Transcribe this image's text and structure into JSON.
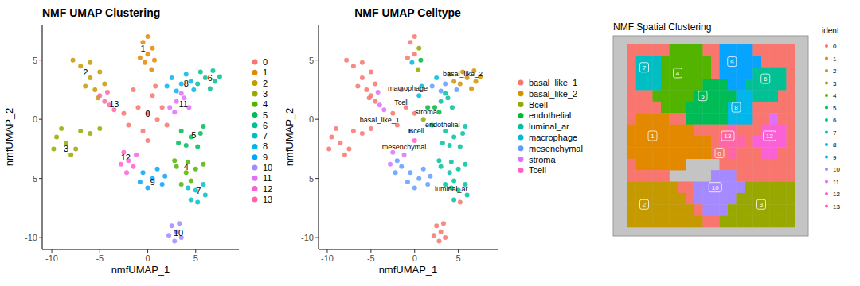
{
  "chart_data": [
    {
      "type": "scatter",
      "title": "NMF UMAP Clustering",
      "x_label": "nmfUMAP_1",
      "y_label": "nmfUMAP_2",
      "xlim": [
        -11,
        9.5
      ],
      "ylim": [
        -11,
        8
      ],
      "xticks": [
        -10,
        -5,
        0,
        5
      ],
      "yticks": [
        -10,
        -5,
        0,
        5
      ],
      "legend": "right",
      "series": [
        {
          "name": "0",
          "color": "#F8766D",
          "x": [
            0,
            -1,
            1,
            -2,
            0.5,
            -0.5,
            1.5,
            -1.5,
            2,
            0,
            -2.5,
            0.8
          ],
          "values": [
            0.5,
            1,
            0,
            -0.5,
            2,
            -1,
            1,
            2.5,
            -0.5,
            -1.8,
            0.5,
            2.8
          ]
        },
        {
          "name": "1",
          "color": "#E38900",
          "x": [
            0,
            -0.5,
            0.5,
            -0.3,
            0.4,
            0,
            -0.8,
            0.7
          ],
          "values": [
            5.5,
            6.5,
            6,
            4.8,
            4.2,
            7,
            5.2,
            5
          ]
        },
        {
          "name": "2",
          "color": "#C49A00",
          "x": [
            -6,
            -7,
            -5,
            -6.5,
            -5.5,
            -7.8,
            -4.5,
            -6,
            -5.2
          ],
          "values": [
            3.5,
            4.5,
            4,
            2.8,
            2.5,
            5,
            3,
            4.8,
            1.8
          ]
        },
        {
          "name": "3",
          "color": "#99A800",
          "x": [
            -8.5,
            -9.5,
            -8,
            -7,
            -9,
            -7.5,
            -9.8,
            -6,
            -5
          ],
          "values": [
            -2,
            -1.5,
            -3,
            -1,
            -0.8,
            -2.5,
            -2.5,
            -1.2,
            -0.8
          ]
        },
        {
          "name": "4",
          "color": "#53B400",
          "x": [
            4,
            3,
            5,
            4.5,
            3.5,
            5.8,
            2.8,
            4.2
          ],
          "values": [
            -4.5,
            -4,
            -4.2,
            -5.2,
            -5.5,
            -3.8,
            -3.5,
            -3.6
          ]
        },
        {
          "name": "5",
          "color": "#00BC56",
          "x": [
            4.5,
            3.5,
            5.5,
            4,
            5.2,
            3.2,
            5.8
          ],
          "values": [
            -1.5,
            -1,
            -1.2,
            -2.2,
            -2.3,
            -2,
            -0.6
          ]
        },
        {
          "name": "6",
          "color": "#00C094",
          "x": [
            6,
            7,
            5.5,
            6.5,
            7.5,
            5.2,
            6.8
          ],
          "values": [
            3.5,
            3.2,
            4,
            2.6,
            3.6,
            3,
            4.1
          ]
        },
        {
          "name": "7",
          "color": "#00BFC4",
          "x": [
            5,
            4.5,
            5.8,
            5.2,
            4.2,
            6
          ],
          "values": [
            -6,
            -6.8,
            -5.5,
            -7,
            -5.8,
            -6.4
          ]
        },
        {
          "name": "8",
          "color": "#00B6EB",
          "x": [
            3.5,
            2.5,
            4.5,
            3,
            4,
            2,
            4.8
          ],
          "values": [
            3,
            3.5,
            3.2,
            2.4,
            3.8,
            2.8,
            2.5
          ]
        },
        {
          "name": "9",
          "color": "#06A4FF",
          "x": [
            0.5,
            -0.5,
            1.5,
            0,
            1,
            -0.8,
            1.8
          ],
          "values": [
            -5,
            -4.5,
            -5.5,
            -5.8,
            -4.2,
            -5.3,
            -4.8
          ]
        },
        {
          "name": "10",
          "color": "#A58AFF",
          "x": [
            3,
            2.5,
            3.5,
            2.8,
            3.3,
            2.2
          ],
          "values": [
            -9.5,
            -9,
            -10,
            -10.3,
            -8.8,
            -9.8
          ]
        },
        {
          "name": "11",
          "color": "#DF70F8",
          "x": [
            3,
            2.3,
            3.8,
            4.3,
            2.8,
            3.5
          ],
          "values": [
            1.5,
            1,
            1.8,
            1,
            0.6,
            2.2
          ]
        },
        {
          "name": "12",
          "color": "#FB61D7",
          "x": [
            -2,
            -2.5,
            -1.5,
            -2.8,
            -1.2,
            -2.2
          ],
          "values": [
            -3.5,
            -2.8,
            -4,
            -3.8,
            -3,
            -4.5
          ]
        },
        {
          "name": "13",
          "color": "#FF66A8",
          "x": [
            -4.5,
            -4,
            -3.5,
            -5,
            -4.2
          ],
          "values": [
            1.5,
            1.2,
            0.8,
            2,
            2.3
          ]
        }
      ],
      "annotations": [
        {
          "text": "0",
          "x": 0,
          "y": 0.5
        },
        {
          "text": "1",
          "x": -0.5,
          "y": 6
        },
        {
          "text": "2",
          "x": -6.5,
          "y": 4
        },
        {
          "text": "3",
          "x": -8.5,
          "y": -2.5
        },
        {
          "text": "4",
          "x": 4,
          "y": -4
        },
        {
          "text": "5",
          "x": 4.8,
          "y": -1.3
        },
        {
          "text": "6",
          "x": 6.5,
          "y": 3.5
        },
        {
          "text": "7",
          "x": 5.3,
          "y": -6
        },
        {
          "text": "8",
          "x": 4,
          "y": 3
        },
        {
          "text": "9",
          "x": 0.5,
          "y": -5.3
        },
        {
          "text": "10",
          "x": 3.2,
          "y": -9.6
        },
        {
          "text": "11",
          "x": 3.7,
          "y": 1.3
        },
        {
          "text": "12",
          "x": -2.3,
          "y": -3.2
        },
        {
          "text": "13",
          "x": -3.5,
          "y": 1.3
        }
      ]
    },
    {
      "type": "scatter",
      "title": "NMF UMAP Celltype",
      "x_label": "nmfUMAP_1",
      "y_label": "nmfUMAP_2",
      "xlim": [
        -11,
        9.5
      ],
      "ylim": [
        -11,
        8
      ],
      "xticks": [
        -10,
        -5,
        0,
        5
      ],
      "yticks": [
        -10,
        -5,
        0,
        5
      ],
      "legend": "right",
      "series": [
        {
          "name": "basal_like_1",
          "color": "#F8766D",
          "x": [
            0,
            -1,
            -2,
            -2.5,
            -1.5,
            0,
            -0.5,
            0,
            -0.8,
            -6,
            -7,
            -5,
            -6.5,
            -5.5,
            -7.8,
            -4.5,
            -6,
            -5.2,
            -8.5,
            -9.5,
            -8,
            -7,
            -9,
            -7.5,
            -9.8,
            -6,
            -5,
            3,
            2.5,
            3.5,
            2.8,
            3.3,
            2.2,
            -4.5,
            -5,
            5.2
          ],
          "values": [
            0.5,
            1,
            -0.5,
            0.5,
            2.5,
            5.5,
            6.5,
            7,
            5.2,
            3.5,
            4.5,
            4,
            2.8,
            2.5,
            5,
            3,
            4.8,
            1.8,
            -2,
            -1.5,
            -3,
            -1,
            -0.8,
            -2.5,
            -2.5,
            -1.2,
            -0.8,
            -9.5,
            -9,
            -10,
            -10.3,
            -8.8,
            -9.8,
            1.5,
            2,
            -7
          ]
        },
        {
          "name": "basal_like_2",
          "color": "#D39200",
          "x": [
            6,
            7,
            5.5,
            6.5,
            7.5,
            5.2,
            6.8,
            4.5,
            4
          ],
          "values": [
            3.5,
            3.2,
            4,
            2.6,
            3.6,
            3,
            4.1,
            3.2,
            3.8
          ]
        },
        {
          "name": "Bcell",
          "color": "#93AA00",
          "x": [
            1,
            0.5,
            0.4
          ],
          "values": [
            0,
            6,
            4.2
          ]
        },
        {
          "name": "endothelial",
          "color": "#00BA38",
          "x": [
            1.5,
            2,
            2.3,
            2.8,
            0.7
          ],
          "values": [
            1,
            -0.5,
            1,
            0.6,
            5
          ]
        },
        {
          "name": "luminal_ar",
          "color": "#00C19F",
          "x": [
            4,
            3,
            5,
            4.5,
            3.5,
            5.8,
            2.8,
            4.2,
            4.5,
            3.5,
            5.5,
            4,
            5.2,
            3.2,
            5.8,
            5,
            4.5,
            5.8,
            4.2,
            6,
            3,
            3.8,
            4.3,
            3.5
          ],
          "values": [
            -4.5,
            -4,
            -4.2,
            -5.2,
            -5.5,
            -3.8,
            -3.5,
            -3.6,
            -1.5,
            -1,
            -1.2,
            -2.2,
            -2.3,
            -2,
            -0.6,
            -6,
            -6.8,
            -5.5,
            -5.8,
            -6.4,
            1.5,
            1.8,
            1,
            2.2
          ]
        },
        {
          "name": "macrophage",
          "color": "#00B9E3",
          "x": [
            0.5,
            0.8,
            -0.3,
            2.5
          ],
          "values": [
            2,
            2.8,
            4.8,
            3.5
          ]
        },
        {
          "name": "mesenchymal",
          "color": "#619CFF",
          "x": [
            0.5,
            -0.5,
            1.5,
            0,
            1,
            -0.8,
            1.8,
            -2,
            -1.5,
            -2.2,
            3.5,
            3,
            2,
            4.8,
            -0.5
          ],
          "values": [
            -5,
            -4.5,
            -5.5,
            -5.8,
            -4.2,
            -5.3,
            -4.8,
            -3.5,
            -4,
            -4.5,
            3,
            2.4,
            2.8,
            2.5,
            -1
          ]
        },
        {
          "name": "stroma",
          "color": "#DB72FB",
          "x": [
            -2.5,
            -2.8,
            -1.2,
            -4,
            -3.5,
            -4.2
          ],
          "values": [
            -2.8,
            -3.8,
            -3,
            1.2,
            0.8,
            2.3
          ]
        },
        {
          "name": "Tcell",
          "color": "#FF61C3",
          "x": [
            0
          ],
          "values": [
            -1.8
          ]
        }
      ],
      "annotations": [
        {
          "text": "basal_like_2",
          "x": 5.5,
          "y": 3.9
        },
        {
          "text": "macrophage",
          "x": -0.8,
          "y": 2.7
        },
        {
          "text": "Tcell",
          "x": -1.5,
          "y": 1.5
        },
        {
          "text": "stroma",
          "x": 1.3,
          "y": 0.7
        },
        {
          "text": "basal_like_1",
          "x": -4,
          "y": 0
        },
        {
          "text": "endothelial",
          "x": 3.2,
          "y": -0.4
        },
        {
          "text": "Bcell",
          "x": 0.2,
          "y": -0.9
        },
        {
          "text": "mesenchymal",
          "x": -1.2,
          "y": -2.3
        },
        {
          "text": "luminal_ar",
          "x": 4.2,
          "y": -5.8
        }
      ]
    },
    {
      "type": "spatial",
      "title": "NMF Spatial Clustering",
      "legend_title": "ident",
      "legend": "right",
      "categories": [
        "0",
        "1",
        "2",
        "3",
        "4",
        "5",
        "6",
        "7",
        "8",
        "9",
        "10",
        "11",
        "12",
        "13"
      ],
      "colors": [
        "#F8766D",
        "#E38900",
        "#C49A00",
        "#99A800",
        "#53B400",
        "#00BC56",
        "#00C094",
        "#00BFC4",
        "#00B6EB",
        "#06A4FF",
        "#A58AFF",
        "#DF70F8",
        "#FB61D7",
        "#FF66A8"
      ],
      "cells": [
        [
          0,
          0,
          0,
          0,
          0,
          4,
          4,
          4,
          4,
          0,
          0,
          9,
          9,
          9,
          9,
          0,
          0,
          0,
          0,
          0
        ],
        [
          0,
          7,
          7,
          7,
          4,
          4,
          4,
          4,
          4,
          4,
          0,
          9,
          9,
          9,
          9,
          9,
          0,
          0,
          0,
          0
        ],
        [
          0,
          7,
          7,
          7,
          4,
          4,
          4,
          4,
          4,
          4,
          0,
          9,
          9,
          9,
          9,
          6,
          6,
          6,
          6,
          0
        ],
        [
          0,
          7,
          7,
          7,
          4,
          4,
          4,
          4,
          4,
          5,
          5,
          5,
          9,
          9,
          6,
          6,
          6,
          6,
          6,
          0
        ],
        [
          0,
          0,
          0,
          4,
          4,
          4,
          4,
          4,
          5,
          5,
          5,
          5,
          5,
          8,
          8,
          6,
          6,
          6,
          0,
          0
        ],
        [
          0,
          0,
          0,
          0,
          4,
          4,
          4,
          5,
          5,
          5,
          5,
          5,
          8,
          8,
          8,
          0,
          0,
          0,
          0,
          0
        ],
        [
          0,
          1,
          1,
          1,
          1,
          0,
          0,
          5,
          5,
          5,
          5,
          5,
          8,
          8,
          8,
          0,
          0,
          11,
          0,
          0
        ],
        [
          1,
          1,
          1,
          1,
          1,
          1,
          1,
          1,
          0,
          0,
          0,
          0,
          13,
          0,
          0,
          0,
          12,
          12,
          12,
          0
        ],
        [
          1,
          1,
          1,
          1,
          1,
          1,
          1,
          1,
          1,
          1,
          0,
          13,
          13,
          13,
          0,
          12,
          12,
          12,
          12,
          0
        ],
        [
          1,
          1,
          1,
          1,
          1,
          1,
          1,
          1,
          1,
          1,
          0,
          0,
          13,
          0,
          0,
          0,
          12,
          12,
          0,
          0
        ],
        [
          0,
          1,
          1,
          1,
          1,
          1,
          1,
          null,
          null,
          null,
          null,
          0,
          0,
          0,
          0,
          0,
          0,
          0,
          0,
          0
        ],
        [
          0,
          0,
          0,
          0,
          0,
          null,
          null,
          null,
          null,
          null,
          10,
          10,
          10,
          0,
          0,
          0,
          0,
          0,
          0,
          0
        ],
        [
          2,
          2,
          2,
          2,
          2,
          2,
          0,
          0,
          10,
          10,
          10,
          10,
          10,
          10,
          3,
          3,
          3,
          3,
          3,
          3
        ],
        [
          2,
          2,
          2,
          2,
          2,
          2,
          2,
          0,
          10,
          10,
          10,
          10,
          10,
          3,
          3,
          3,
          3,
          3,
          3,
          3
        ],
        [
          2,
          2,
          2,
          2,
          2,
          2,
          2,
          2,
          0,
          10,
          10,
          10,
          3,
          3,
          3,
          3,
          3,
          3,
          3,
          3
        ],
        [
          2,
          2,
          2,
          2,
          2,
          2,
          2,
          2,
          2,
          0,
          0,
          3,
          3,
          3,
          3,
          3,
          3,
          3,
          3,
          3
        ]
      ],
      "annotations": [
        {
          "text": "7",
          "x": 2,
          "y": 2
        },
        {
          "text": "4",
          "x": 6,
          "y": 2.5
        },
        {
          "text": "9",
          "x": 12.5,
          "y": 1.5
        },
        {
          "text": "6",
          "x": 16.5,
          "y": 3
        },
        {
          "text": "5",
          "x": 9,
          "y": 4.5
        },
        {
          "text": "8",
          "x": 13,
          "y": 5.5
        },
        {
          "text": "1",
          "x": 3,
          "y": 8
        },
        {
          "text": "13",
          "x": 12,
          "y": 8
        },
        {
          "text": "0",
          "x": 11,
          "y": 9.5
        },
        {
          "text": "12",
          "x": 17,
          "y": 8
        },
        {
          "text": "10",
          "x": 10.5,
          "y": 12.5
        },
        {
          "text": "2",
          "x": 2,
          "y": 14
        },
        {
          "text": "3",
          "x": 16,
          "y": 14
        }
      ]
    }
  ]
}
